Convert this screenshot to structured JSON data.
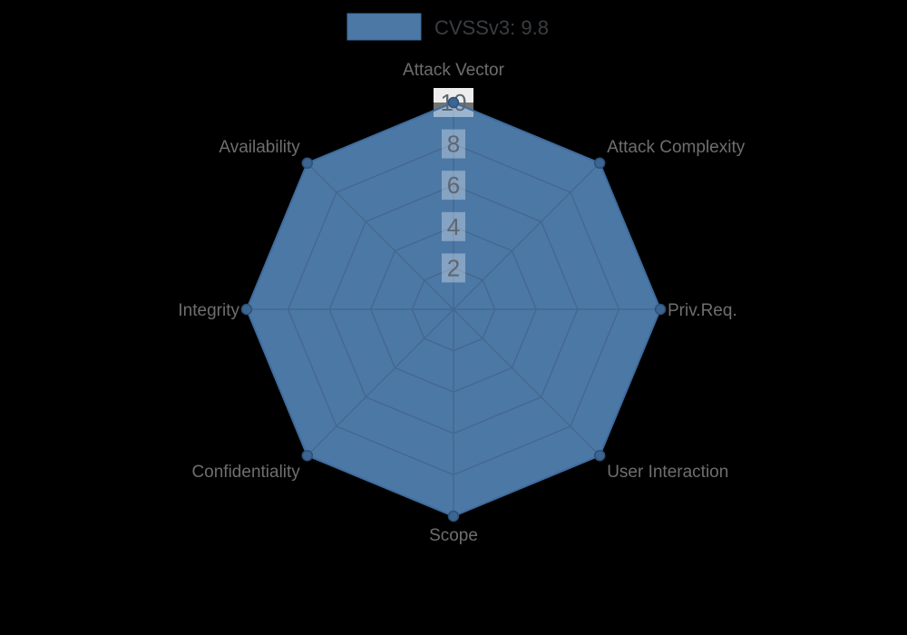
{
  "colors": {
    "background": "#000000",
    "series_fill": "#4c78a6",
    "series_border": "#3f6c9e",
    "point_fill": "#3c6593",
    "point_border": "#2e5177",
    "grid_line": "#45688f",
    "tick_backdrop": "rgba(255,255,255,0.32)",
    "tick_backdrop_outside": "#ededed",
    "tick_backdrop_inside": "rgba(255,255,255,0.45)",
    "tick_text": "#5f6670",
    "category_text": "#6e6e6e",
    "legend_text": "#3a3e42"
  },
  "chart_data": {
    "type": "radar",
    "title": "",
    "legend_position": "top",
    "legend_entries": [
      {
        "label": "CVSSv3: 9.8",
        "color": "#4c78a6"
      }
    ],
    "categories": [
      "Attack Vector",
      "Attack Complexity",
      "Priv.Req.",
      "User Interaction",
      "Scope",
      "Confidentiality",
      "Integrity",
      "Availability"
    ],
    "series": [
      {
        "name": "CVSSv3: 9.8",
        "values": [
          10,
          10,
          10,
          10,
          10,
          10,
          10,
          10
        ]
      }
    ],
    "r_axis": {
      "min": 0,
      "max": 10,
      "ticks": [
        2,
        4,
        6,
        8,
        10
      ]
    },
    "grid": "spider-web-octagon",
    "grid_levels": 5
  }
}
